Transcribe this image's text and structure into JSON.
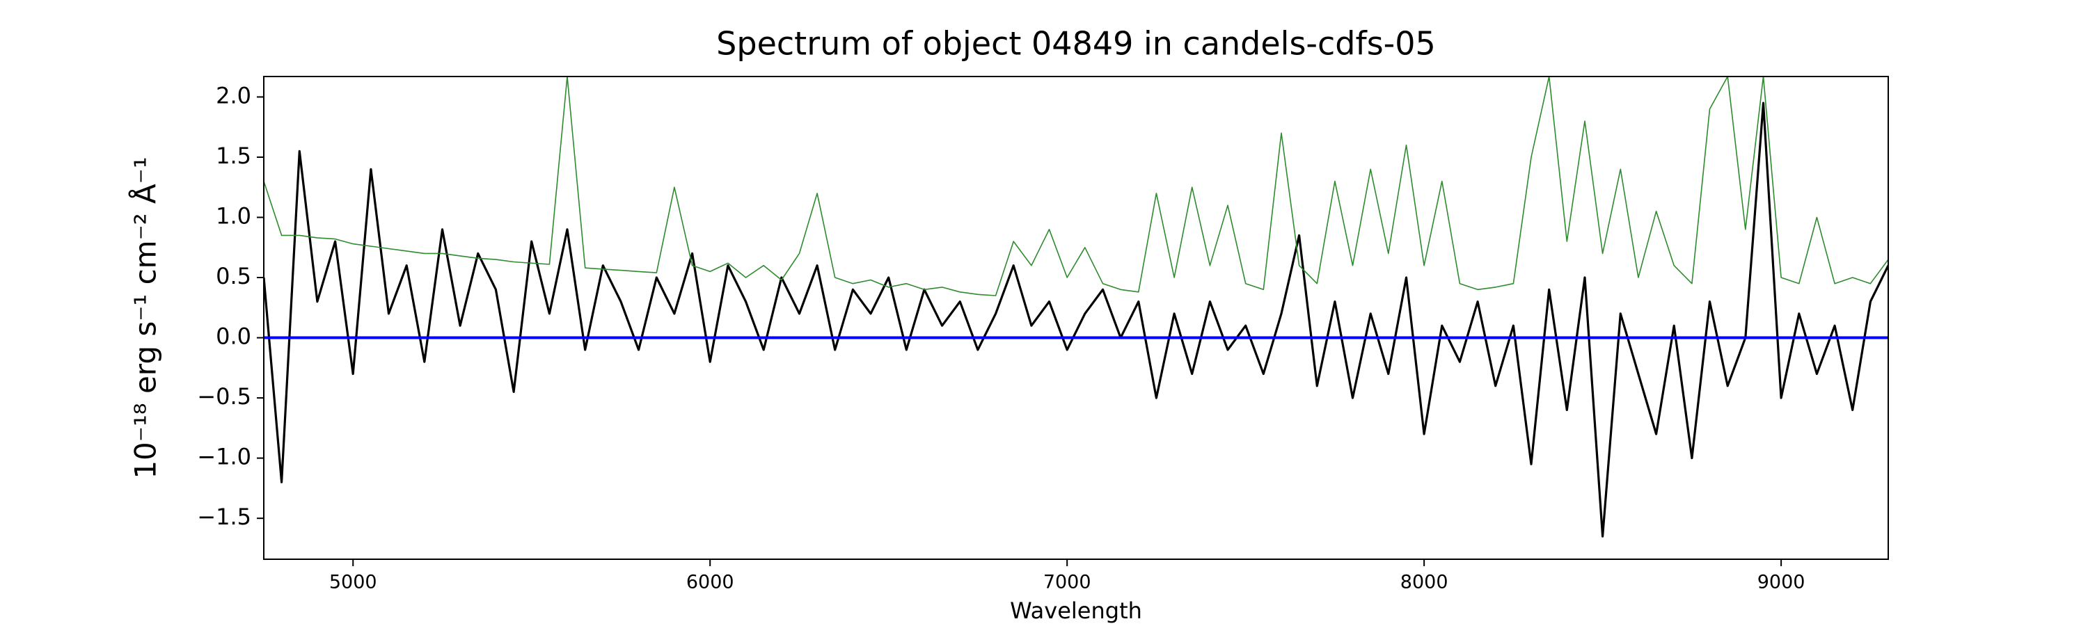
{
  "chart_data": {
    "type": "line",
    "title": "Spectrum of object 04849 in candels-cdfs-05",
    "xlabel": "Wavelength",
    "ylabel": "10⁻¹⁸ erg s⁻¹ cm⁻² Å⁻¹",
    "x": [
      4750,
      4800,
      4850,
      4900,
      4950,
      5000,
      5050,
      5100,
      5150,
      5200,
      5250,
      5300,
      5350,
      5400,
      5450,
      5500,
      5550,
      5600,
      5650,
      5700,
      5750,
      5800,
      5850,
      5900,
      5950,
      6000,
      6050,
      6100,
      6150,
      6200,
      6250,
      6300,
      6350,
      6400,
      6450,
      6500,
      6550,
      6600,
      6650,
      6700,
      6750,
      6800,
      6850,
      6900,
      6950,
      7000,
      7050,
      7100,
      7150,
      7200,
      7250,
      7300,
      7350,
      7400,
      7450,
      7500,
      7550,
      7600,
      7650,
      7700,
      7750,
      7800,
      7850,
      7900,
      7950,
      8000,
      8050,
      8100,
      8150,
      8200,
      8250,
      8300,
      8350,
      8400,
      8450,
      8500,
      8550,
      8600,
      8650,
      8700,
      8750,
      8800,
      8850,
      8900,
      8950,
      9000,
      9050,
      9100,
      9150,
      9200,
      9250,
      9300
    ],
    "series": [
      {
        "color": "#000000",
        "values": [
          0.5,
          -1.2,
          1.55,
          0.3,
          0.8,
          -0.3,
          1.4,
          0.2,
          0.6,
          -0.2,
          0.9,
          0.1,
          0.7,
          0.4,
          -0.45,
          0.8,
          0.2,
          0.9,
          -0.1,
          0.6,
          0.3,
          -0.1,
          0.5,
          0.2,
          0.7,
          -0.2,
          0.6,
          0.3,
          -0.1,
          0.5,
          0.2,
          0.6,
          -0.1,
          0.4,
          0.2,
          0.5,
          -0.1,
          0.4,
          0.1,
          0.3,
          -0.1,
          0.2,
          0.6,
          0.1,
          0.3,
          -0.1,
          0.2,
          0.4,
          0.0,
          0.3,
          -0.5,
          0.2,
          -0.3,
          0.3,
          -0.1,
          0.1,
          -0.3,
          0.2,
          0.85,
          -0.4,
          0.3,
          -0.5,
          0.2,
          -0.3,
          0.5,
          -0.8,
          0.1,
          -0.2,
          0.3,
          -0.4,
          0.1,
          -1.05,
          0.4,
          -0.6,
          0.5,
          -1.65,
          0.2,
          -0.3,
          -0.8,
          0.1,
          -1.0,
          0.3,
          -0.4,
          0.0,
          1.95,
          -0.5,
          0.2,
          -0.3,
          0.1,
          -0.6,
          0.3,
          0.6
        ]
      },
      {
        "color": "#2e8b2e",
        "values": [
          1.3,
          0.85,
          0.85,
          0.83,
          0.82,
          0.78,
          0.76,
          0.74,
          0.72,
          0.7,
          0.7,
          0.68,
          0.66,
          0.65,
          0.63,
          0.62,
          0.61,
          2.17,
          0.58,
          0.57,
          0.56,
          0.55,
          0.54,
          1.25,
          0.6,
          0.55,
          0.62,
          0.5,
          0.6,
          0.48,
          0.7,
          1.2,
          0.5,
          0.45,
          0.48,
          0.42,
          0.45,
          0.4,
          0.42,
          0.38,
          0.36,
          0.35,
          0.8,
          0.6,
          0.9,
          0.5,
          0.75,
          0.45,
          0.4,
          0.38,
          1.2,
          0.5,
          1.25,
          0.6,
          1.1,
          0.45,
          0.4,
          1.7,
          0.6,
          0.45,
          1.3,
          0.6,
          1.4,
          0.7,
          1.6,
          0.6,
          1.3,
          0.45,
          0.4,
          0.42,
          0.45,
          1.5,
          2.17,
          0.8,
          1.8,
          0.7,
          1.4,
          0.5,
          1.05,
          0.6,
          0.45,
          1.9,
          2.17,
          0.9,
          2.17,
          0.5,
          0.45,
          1.0,
          0.45,
          0.5,
          0.45,
          0.65
        ]
      }
    ],
    "reference_line": {
      "y": 0,
      "color": "#0000ff"
    },
    "xlim": [
      4750,
      9300
    ],
    "ylim": [
      -1.84,
      2.17
    ],
    "xticks": [
      5000,
      6000,
      7000,
      8000,
      9000
    ],
    "yticks": [
      {
        "value": -1.5,
        "label": "−1.5"
      },
      {
        "value": -1.0,
        "label": "−1.0"
      },
      {
        "value": -0.5,
        "label": "−0.5"
      },
      {
        "value": 0,
        "label": "0.0"
      },
      {
        "value": 0.5,
        "label": "0.5"
      },
      {
        "value": 1.0,
        "label": "1.0"
      },
      {
        "value": 1.5,
        "label": "1.5"
      },
      {
        "value": 2.0,
        "label": "2.0"
      }
    ]
  }
}
